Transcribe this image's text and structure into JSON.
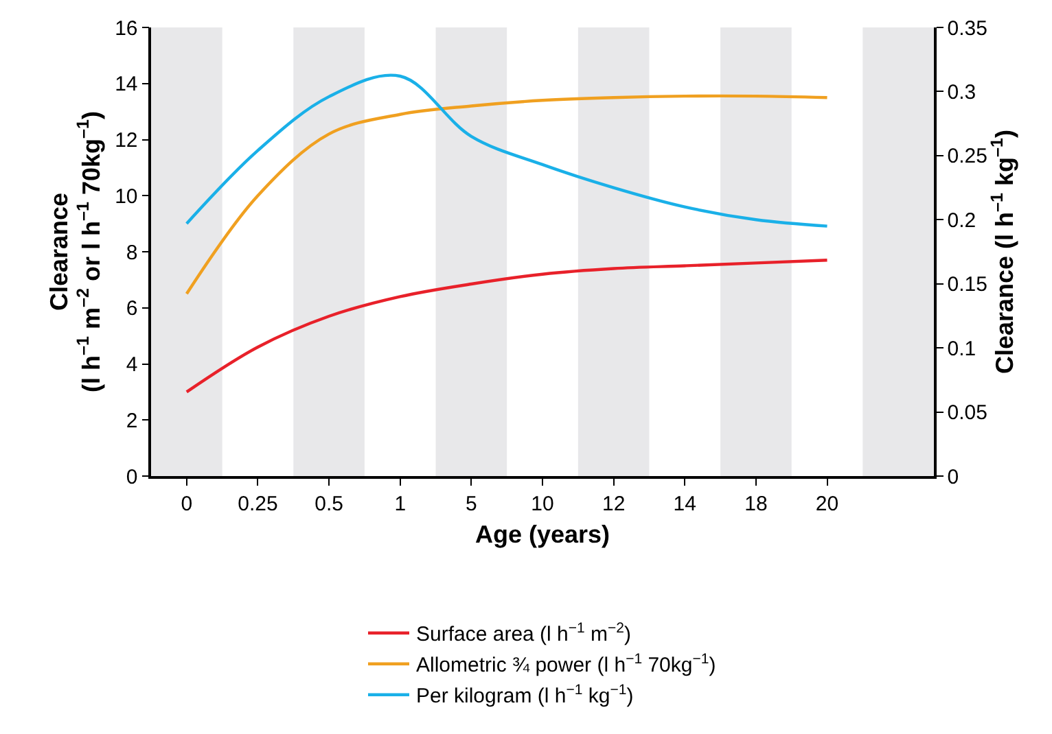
{
  "chart_data": {
    "type": "line",
    "xlabel": "Age (years)",
    "ylabel": "Clearance\n(l h$^{–1}$ m$^{–2}$ or l h$^{–1}$ 70kg$^{–1}$)",
    "y2label": "Clearance (l h$^{–1}$ kg$^{–1}$)",
    "categories": [
      "0",
      "0.25",
      "0.5",
      "1",
      "5",
      "10",
      "12",
      "14",
      "18",
      "20",
      null
    ],
    "ylim": [
      0,
      16
    ],
    "yticks": [
      0,
      2,
      4,
      6,
      8,
      10,
      12,
      14,
      16
    ],
    "y2lim": [
      0,
      0.35
    ],
    "y2ticks": [
      0,
      0.05,
      0.1,
      0.15,
      0.2,
      0.25,
      0.3,
      0.35
    ],
    "series": [
      {
        "name": "Surface area (l h$^{−1}$ m$^{−2}$)",
        "color": "#e8212a",
        "values": [
          3.0,
          4.6,
          5.7,
          6.4,
          6.85,
          7.2,
          7.4,
          7.5,
          7.6,
          7.7,
          null
        ]
      },
      {
        "name": "Allometric ¾ power (l h$^{−1}$ 70kg$^{−1}$)",
        "color": "#f0a020",
        "values": [
          6.5,
          10.0,
          12.2,
          12.9,
          13.2,
          13.4,
          13.5,
          13.55,
          13.55,
          13.5,
          null
        ]
      },
      {
        "name": "Per kilogram (l h$^{−1}$ kg$^{−1}$)",
        "color": "#1ab0e8",
        "axis": "y2",
        "values": [
          0.197,
          0.254,
          0.296,
          0.312,
          0.265,
          0.243,
          0.225,
          0.21,
          0.2,
          0.195,
          null
        ]
      }
    ],
    "legend": "bottom",
    "marker": "none",
    "line_style": "solid",
    "grid": false
  }
}
